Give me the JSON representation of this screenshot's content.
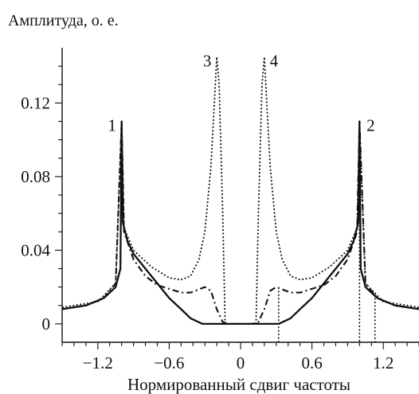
{
  "chart_data": {
    "type": "line",
    "title": "",
    "ylabel": "Амплитуда, о. е.",
    "xlabel": "Нормированный сдвиг частоты",
    "xlim": [
      -1.5,
      1.5
    ],
    "ylim": [
      -0.01,
      0.15
    ],
    "x_ticks": [
      -1.2,
      -0.6,
      0,
      0.6,
      1.2
    ],
    "x_tick_labels": [
      "−1.2",
      "−0.6",
      "0",
      "0.6",
      "1.2"
    ],
    "y_ticks": [
      0,
      0.04,
      0.08,
      0.12
    ],
    "y_tick_labels": [
      "0",
      "0.04",
      "0.08",
      "0.12"
    ],
    "grid": false,
    "legend": "none",
    "series": [
      {
        "style": "solid",
        "points": [
          [
            -1.5,
            0.008
          ],
          [
            -1.3,
            0.01
          ],
          [
            -1.15,
            0.014
          ],
          [
            -1.05,
            0.02
          ],
          [
            -1.01,
            0.03
          ],
          [
            -1.0,
            0.11
          ],
          [
            -0.99,
            0.055
          ],
          [
            -0.95,
            0.045
          ],
          [
            -0.9,
            0.038
          ],
          [
            -0.8,
            0.03
          ],
          [
            -0.7,
            0.022
          ],
          [
            -0.6,
            0.014
          ],
          [
            -0.5,
            0.008
          ],
          [
            -0.42,
            0.003
          ],
          [
            -0.32,
            0.0
          ],
          [
            0.32,
            0.0
          ],
          [
            0.42,
            0.003
          ],
          [
            0.5,
            0.008
          ],
          [
            0.6,
            0.014
          ],
          [
            0.7,
            0.022
          ],
          [
            0.8,
            0.03
          ],
          [
            0.9,
            0.038
          ],
          [
            0.95,
            0.045
          ],
          [
            0.99,
            0.055
          ],
          [
            1.0,
            0.11
          ],
          [
            1.01,
            0.03
          ],
          [
            1.05,
            0.02
          ],
          [
            1.15,
            0.014
          ],
          [
            1.3,
            0.01
          ],
          [
            1.5,
            0.008
          ]
        ]
      },
      {
        "style": "dashed",
        "points": [
          [
            -1.5,
            0.008
          ],
          [
            -1.3,
            0.01
          ],
          [
            -1.15,
            0.014
          ],
          [
            -1.05,
            0.022
          ],
          [
            -1.0,
            0.11
          ],
          [
            -0.98,
            0.05
          ],
          [
            -0.9,
            0.035
          ],
          [
            -0.8,
            0.026
          ],
          [
            -0.7,
            0.021
          ],
          [
            -0.6,
            0.019
          ],
          [
            -0.5,
            0.017
          ],
          [
            -0.42,
            0.017
          ],
          [
            -0.3,
            0.02
          ],
          [
            -0.25,
            0.018
          ],
          [
            -0.2,
            0.008
          ],
          [
            -0.15,
            0.001
          ],
          [
            -0.1,
            0.0
          ],
          [
            0.1,
            0.0
          ],
          [
            0.15,
            0.001
          ],
          [
            0.2,
            0.008
          ],
          [
            0.25,
            0.018
          ],
          [
            0.3,
            0.02
          ],
          [
            0.42,
            0.017
          ],
          [
            0.5,
            0.017
          ],
          [
            0.6,
            0.019
          ],
          [
            0.7,
            0.021
          ],
          [
            0.8,
            0.026
          ],
          [
            0.9,
            0.035
          ],
          [
            0.98,
            0.05
          ],
          [
            1.0,
            0.11
          ],
          [
            1.05,
            0.022
          ],
          [
            1.15,
            0.014
          ],
          [
            1.3,
            0.01
          ],
          [
            1.5,
            0.008
          ]
        ]
      },
      {
        "style": "dotted",
        "points": [
          [
            -1.5,
            0.009
          ],
          [
            -1.2,
            0.012
          ],
          [
            -1.05,
            0.022
          ],
          [
            -1.0,
            0.11
          ],
          [
            -0.98,
            0.052
          ],
          [
            -0.9,
            0.04
          ],
          [
            -0.75,
            0.031
          ],
          [
            -0.6,
            0.025
          ],
          [
            -0.5,
            0.024
          ],
          [
            -0.42,
            0.026
          ],
          [
            -0.35,
            0.035
          ],
          [
            -0.3,
            0.05
          ],
          [
            -0.25,
            0.085
          ],
          [
            -0.22,
            0.12
          ],
          [
            -0.2,
            0.145
          ],
          [
            -0.18,
            0.13
          ],
          [
            -0.15,
            0.06
          ],
          [
            -0.13,
            0.0
          ],
          [
            0.13,
            0.0
          ],
          [
            0.15,
            0.06
          ],
          [
            0.18,
            0.13
          ],
          [
            0.2,
            0.145
          ],
          [
            0.22,
            0.12
          ],
          [
            0.25,
            0.085
          ],
          [
            0.3,
            0.05
          ],
          [
            0.35,
            0.035
          ],
          [
            0.42,
            0.026
          ],
          [
            0.5,
            0.024
          ],
          [
            0.6,
            0.025
          ],
          [
            0.75,
            0.031
          ],
          [
            0.9,
            0.04
          ],
          [
            0.98,
            0.052
          ],
          [
            1.0,
            0.11
          ],
          [
            1.05,
            0.022
          ],
          [
            1.2,
            0.012
          ],
          [
            1.5,
            0.009
          ]
        ]
      }
    ],
    "vertical_markers": [
      {
        "style": "dotted",
        "x": 0.32,
        "y_top": 0.018
      },
      {
        "style": "dotted",
        "x": 1.0,
        "y_top": 0.11
      },
      {
        "style": "dotted",
        "x": 1.13,
        "y_top": 0.014
      }
    ],
    "annotations": [
      {
        "text": "1",
        "x": -1.0,
        "y": 0.11
      },
      {
        "text": "2",
        "x": 1.0,
        "y": 0.11
      },
      {
        "text": "3",
        "x": -0.2,
        "y": 0.145
      },
      {
        "text": "4",
        "x": 0.2,
        "y": 0.145
      }
    ]
  }
}
